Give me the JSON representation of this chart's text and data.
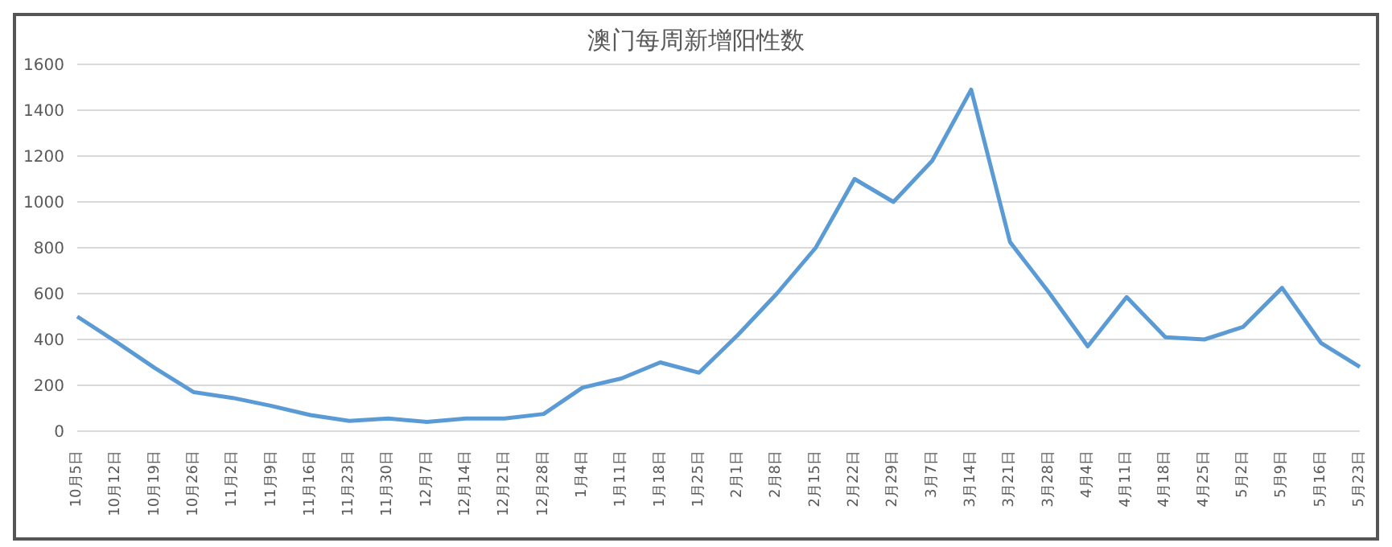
{
  "chart_data": {
    "type": "line",
    "title": "澳门每周新增阳性数",
    "categories": [
      "10月5日",
      "10月12日",
      "10月19日",
      "10月26日",
      "11月2日",
      "11月9日",
      "11月16日",
      "11月23日",
      "11月30日",
      "12月7日",
      "12月14日",
      "12月21日",
      "12月28日",
      "1月4日",
      "1月11日",
      "1月18日",
      "1月25日",
      "2月1日",
      "2月8日",
      "2月15日",
      "2月22日",
      "2月29日",
      "3月7日",
      "3月14日",
      "3月21日",
      "3月28日",
      "4月4日",
      "4月11日",
      "4月18日",
      "4月25日",
      "5月2日",
      "5月9日",
      "5月16日",
      "5月23日"
    ],
    "series": [
      {
        "color": "#5b9bd5",
        "values": [
          500,
          390,
          275,
          170,
          145,
          110,
          70,
          45,
          55,
          40,
          55,
          55,
          75,
          190,
          230,
          300,
          255,
          420,
          600,
          800,
          1100,
          1000,
          1180,
          1490,
          825,
          605,
          370,
          585,
          410,
          400,
          455,
          625,
          385,
          280
        ]
      }
    ],
    "ylim": [
      0,
      1600
    ],
    "yticks": [
      0,
      200,
      400,
      600,
      800,
      1000,
      1200,
      1400,
      1600
    ],
    "grid": "y",
    "legend": false,
    "marker": "none",
    "line_style": "solid"
  }
}
